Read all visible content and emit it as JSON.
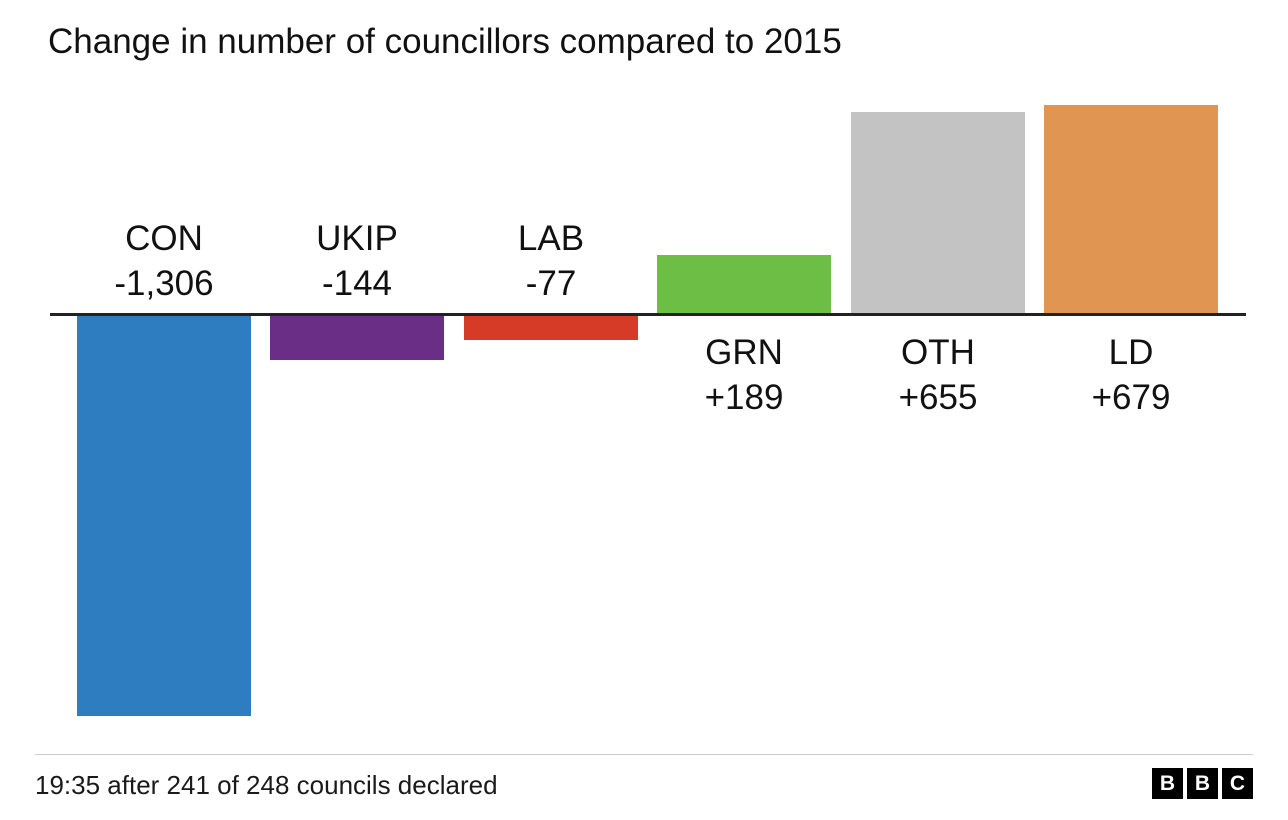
{
  "chart_data": {
    "type": "bar",
    "title": "Change in number of councillors compared to 2015",
    "xlabel": "",
    "ylabel": "",
    "categories": [
      "CON",
      "UKIP",
      "LAB",
      "GRN",
      "OTH",
      "LD"
    ],
    "values": [
      -1306,
      -144,
      -77,
      189,
      655,
      679
    ],
    "value_labels": [
      "-1,306",
      "-144",
      "-77",
      "+189",
      "+655",
      "+679"
    ],
    "colors": [
      "#2e7dc0",
      "#6a2e87",
      "#d63b27",
      "#6cbe45",
      "#c3c3c3",
      "#e09552"
    ],
    "ylim": [
      -1306,
      679
    ],
    "grid": false,
    "legend": "none"
  },
  "footer": {
    "status": "19:35 after 241 of 248 councils declared",
    "logo_letters": [
      "B",
      "B",
      "C"
    ]
  }
}
